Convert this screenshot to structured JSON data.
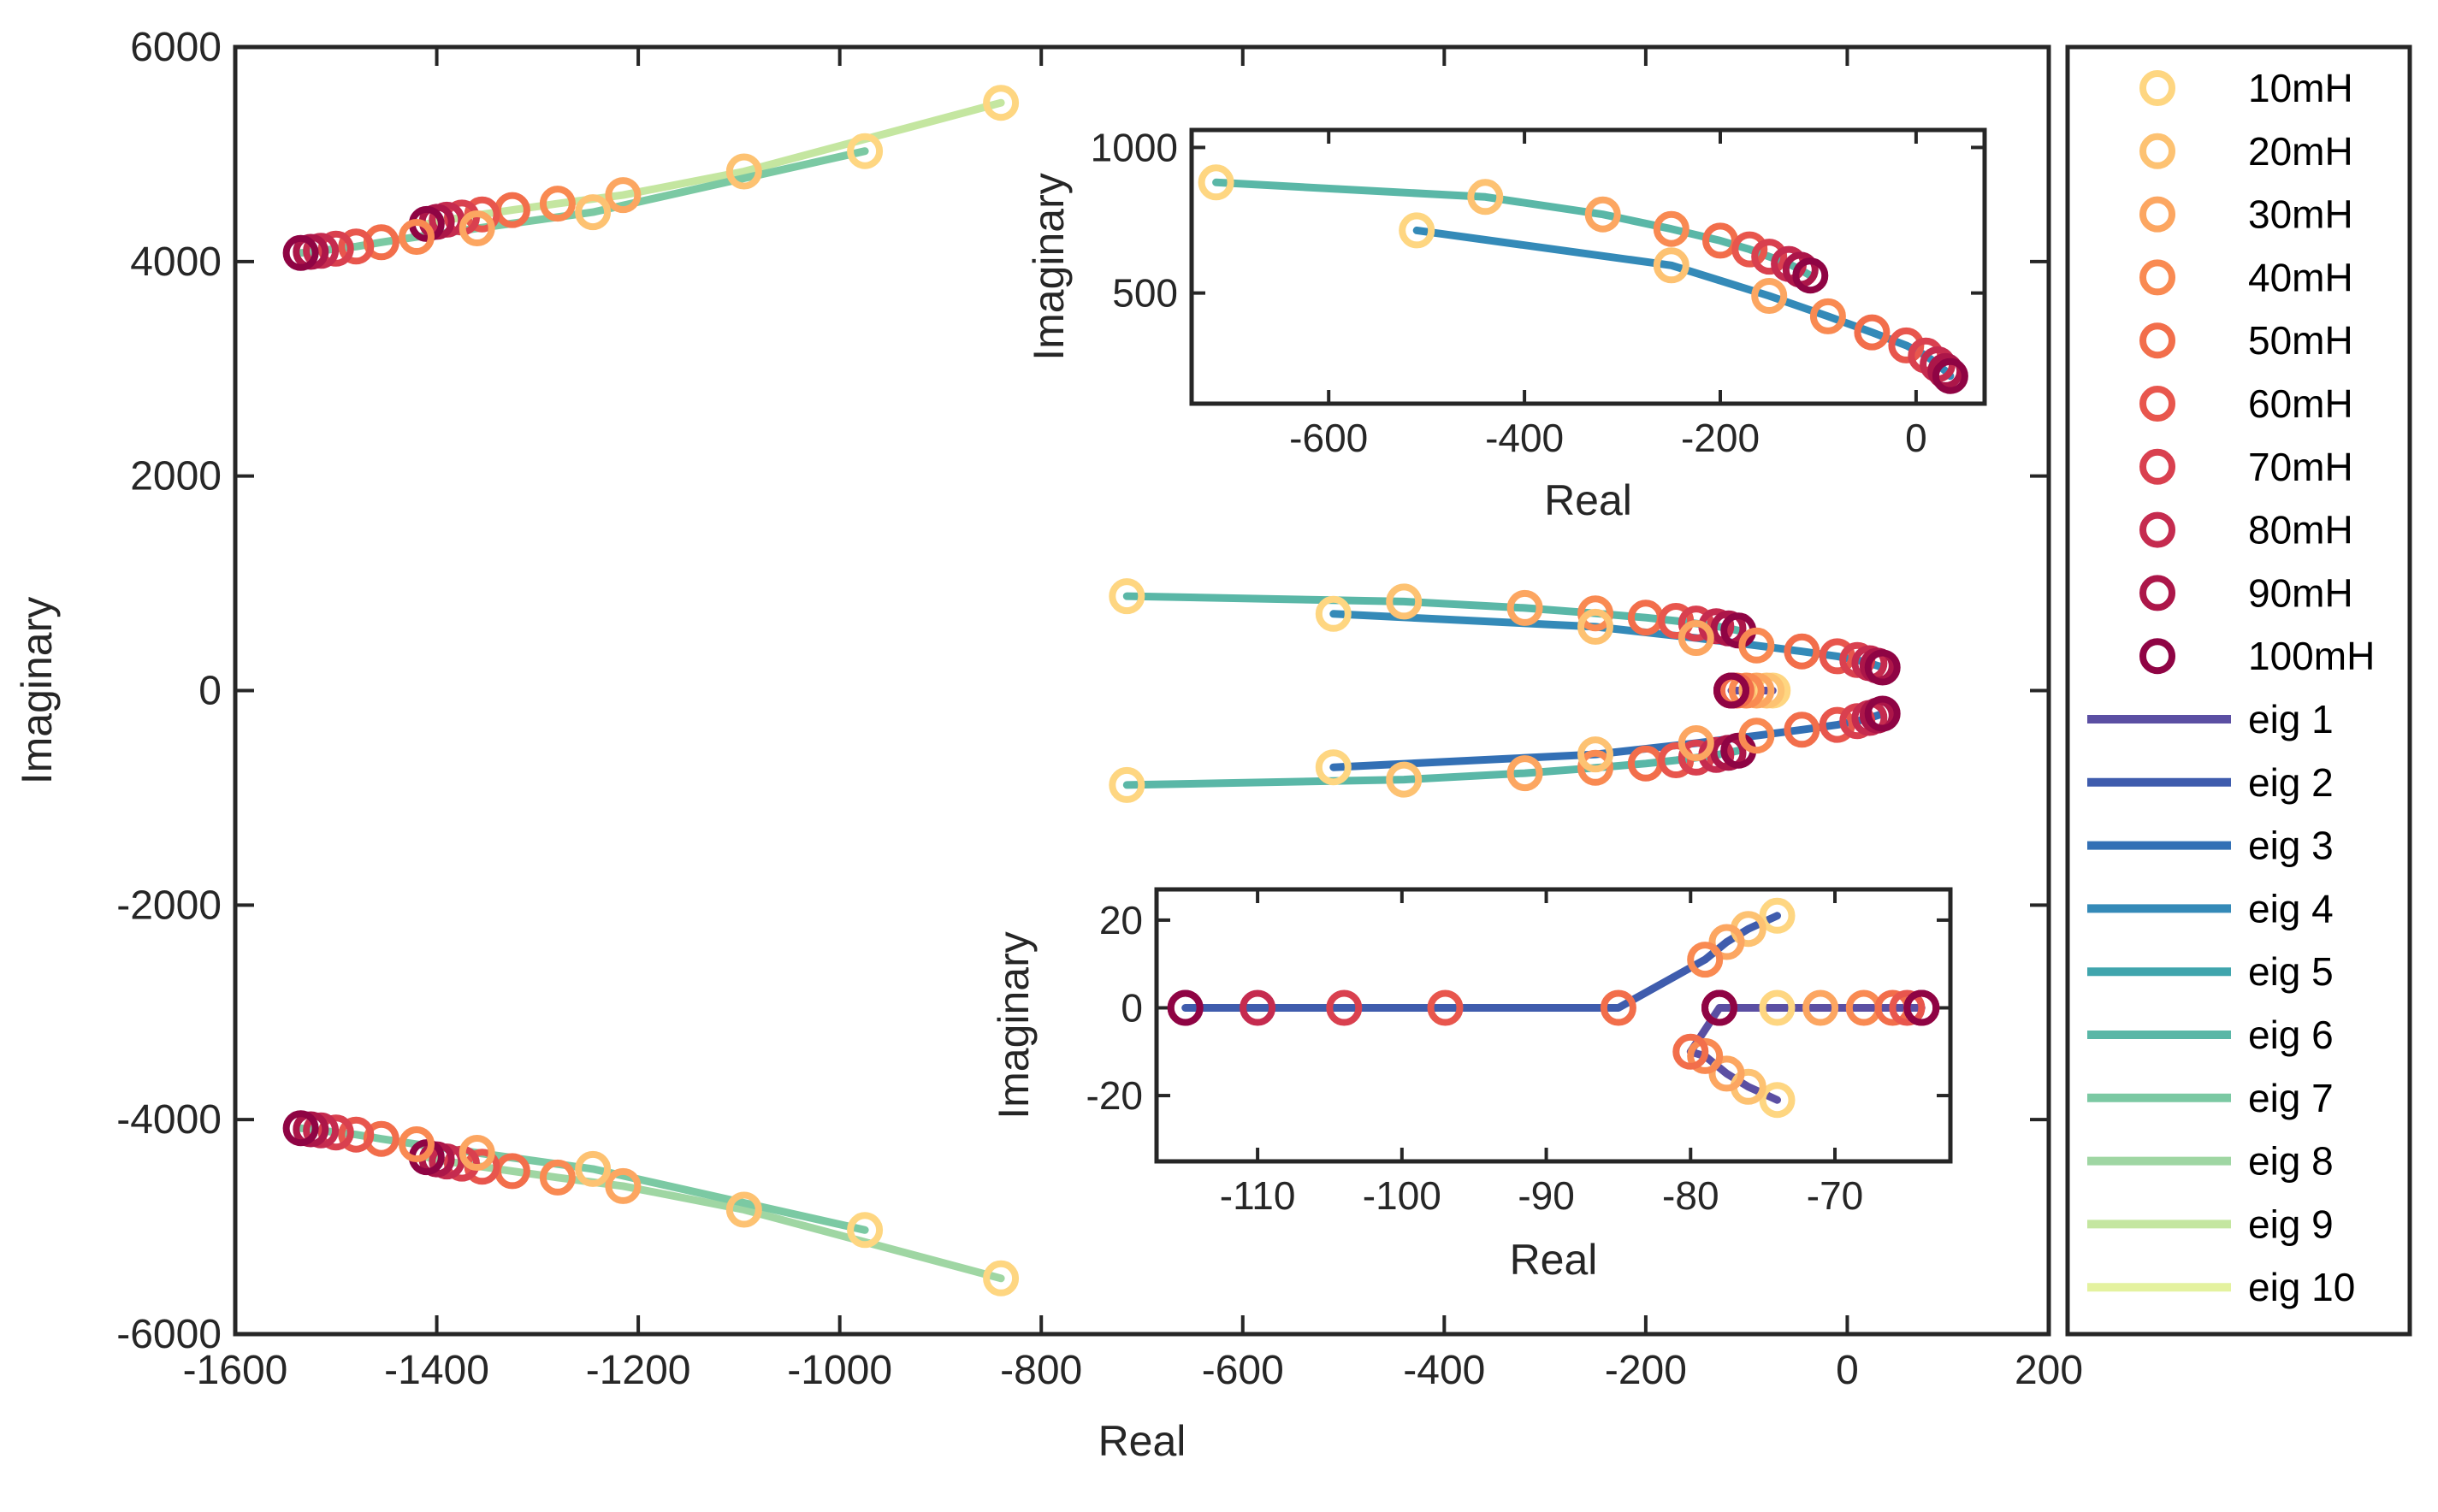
{
  "chart_data": [
    {
      "type": "line",
      "role": "main",
      "xlabel": "Real",
      "ylabel": "Imaginary",
      "xlim": [
        -1600,
        200
      ],
      "ylim": [
        -6000,
        6000
      ],
      "xticks": [
        -1600,
        -1400,
        -1200,
        -1000,
        -800,
        -600,
        -400,
        -200,
        0,
        200
      ],
      "yticks": [
        -6000,
        -4000,
        -2000,
        0,
        2000,
        4000,
        6000
      ],
      "legend": "outside-right"
    },
    {
      "type": "line",
      "role": "inset-top",
      "xlabel": "Real",
      "ylabel": "Imaginary",
      "xlim": [
        -740,
        70
      ],
      "ylim": [
        120,
        1060
      ],
      "xticks": [
        -600,
        -400,
        -200,
        0
      ],
      "yticks": [
        500,
        1000
      ]
    },
    {
      "type": "line",
      "role": "inset-bottom",
      "xlabel": "Real",
      "ylabel": "Imaginary",
      "xlim": [
        -117,
        -62
      ],
      "ylim": [
        -35,
        27
      ],
      "xticks": [
        -110,
        -100,
        -90,
        -80,
        -70
      ],
      "yticks": [
        -20,
        0,
        20
      ]
    }
  ],
  "legend": {
    "markers": [
      {
        "label": "10mH",
        "color": "#fed681"
      },
      {
        "label": "20mH",
        "color": "#fdc272"
      },
      {
        "label": "30mH",
        "color": "#fca661"
      },
      {
        "label": "40mH",
        "color": "#f98a52"
      },
      {
        "label": "50mH",
        "color": "#f26e4b"
      },
      {
        "label": "60mH",
        "color": "#e8564d"
      },
      {
        "label": "70mH",
        "color": "#d9404f"
      },
      {
        "label": "80mH",
        "color": "#c52b4f"
      },
      {
        "label": "90mH",
        "color": "#ac1649"
      },
      {
        "label": "100mH",
        "color": "#8f0444"
      }
    ],
    "lines": [
      {
        "label": "eig 1",
        "color": "#5b4fa3"
      },
      {
        "label": "eig 2",
        "color": "#3f5cad"
      },
      {
        "label": "eig 3",
        "color": "#3370b5"
      },
      {
        "label": "eig 4",
        "color": "#348ab8"
      },
      {
        "label": "eig 5",
        "color": "#40a5ad"
      },
      {
        "label": "eig 6",
        "color": "#5ab7a7"
      },
      {
        "label": "eig 7",
        "color": "#7bc9a3"
      },
      {
        "label": "eig 8",
        "color": "#9fd6a3"
      },
      {
        "label": "eig 9",
        "color": "#c4e6a0"
      },
      {
        "label": "eig 10",
        "color": "#e4f29f"
      }
    ]
  }
}
